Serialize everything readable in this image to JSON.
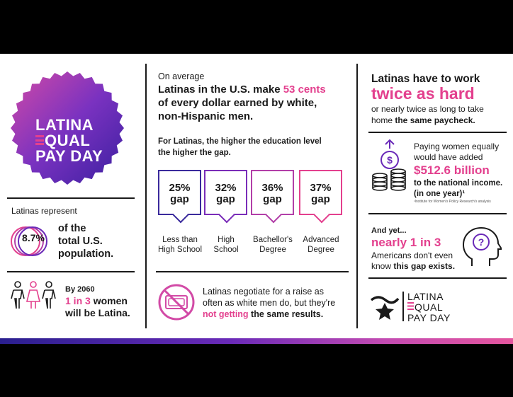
{
  "badge": {
    "line1": "LATINA",
    "line2": "QUAL",
    "line3": "PAY DAY"
  },
  "population": {
    "intro": "Latinas represent",
    "value": "8.7%",
    "line1": "of the",
    "line2": "total U.S.",
    "line3": "population."
  },
  "projection": {
    "line1": "By 2060",
    "highlight": "1 in 3",
    "mid": "women",
    "line3": "will be Latina."
  },
  "pay": {
    "intro": "On average",
    "line1a": "Latinas in the U.S. make ",
    "line1b": "53 cents",
    "line2": "of every dollar earned by white,",
    "line3": "non-Hispanic men."
  },
  "education": {
    "heading1": "For Latinas, the higher the education level",
    "heading2": "the higher the gap.",
    "items": [
      {
        "pct": "25%",
        "word": "gap",
        "label1": "Less than",
        "label2": "High School",
        "color": "#3a2a9c"
      },
      {
        "pct": "32%",
        "word": "gap",
        "label1": "High",
        "label2": "School",
        "color": "#7a2db8"
      },
      {
        "pct": "36%",
        "word": "gap",
        "label1": "Bachellor's",
        "label2": "Degree",
        "color": "#b23fa8"
      },
      {
        "pct": "37%",
        "word": "gap",
        "label1": "Advanced",
        "label2": "Degree",
        "color": "#e3408e"
      }
    ]
  },
  "negotiate": {
    "line1": "Latinas negotiate for a raise as",
    "line2": "often as white men do, but they're",
    "highlight": "not getting",
    "tail": " the same results."
  },
  "work": {
    "line1": "Latinas have to work",
    "highlight": "twice as hard",
    "line3": "or nearly twice as long to take",
    "line4a": "home ",
    "line4b": "the same paycheck."
  },
  "economy": {
    "line1": "Paying women equally",
    "line2": "would have added",
    "amount": "$512.6 billion",
    "line4": "to the national income.",
    "line5": "(in one year)¹",
    "footnote": "¹Institute for Women's Policy Research's analysis"
  },
  "awareness": {
    "intro": "And yet...",
    "highlight": "nearly 1 in 3",
    "line3": "Americans don't even",
    "line4a": "know ",
    "line4b": "this gap exists."
  },
  "logo": {
    "line1": "LATINA",
    "line2": "QUAL",
    "line3": "PAY DAY"
  },
  "colors": {
    "pink": "#e3408e",
    "purple": "#6a2ab8",
    "indigo": "#2a1f8f"
  },
  "icons": [
    "people-icon",
    "no-money-icon",
    "dollar-coins-icon",
    "head-question-icon",
    "star-logo-icon"
  ]
}
